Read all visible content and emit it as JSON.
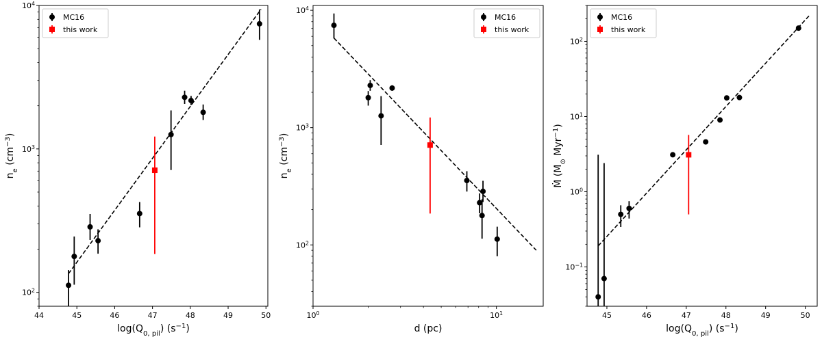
{
  "chart_data": [
    {
      "type": "scatter",
      "xscale": "linear",
      "yscale": "log",
      "xlim": [
        44,
        50.05
      ],
      "ylim": [
        80,
        10000
      ],
      "xlabel_parts": [
        "log(Q",
        "0, pil",
        ") (s",
        "−1",
        ")"
      ],
      "ylabel_parts": [
        "n",
        "e",
        " (cm",
        "−3",
        ")"
      ],
      "xticks": [
        44,
        45,
        46,
        47,
        48,
        49,
        50
      ],
      "xtick_labels": [
        "44",
        "45",
        "46",
        "47",
        "48",
        "49",
        "50"
      ],
      "yticks": [
        100,
        1000,
        10000
      ],
      "ytick_labels": [
        [
          "10",
          "2"
        ],
        [
          "10",
          "3"
        ],
        [
          "10",
          "4"
        ]
      ],
      "legend": {
        "position": "top-left",
        "entries": [
          "MC16",
          "this work"
        ]
      },
      "series": [
        {
          "name": "MC16",
          "color": "#000000",
          "marker": "circle",
          "points": [
            {
              "x": 44.78,
              "y": 112,
              "lo": 80,
              "hi": 143
            },
            {
              "x": 44.93,
              "y": 178,
              "lo": 113,
              "hi": 245
            },
            {
              "x": 45.35,
              "y": 286,
              "lo": 232,
              "hi": 352
            },
            {
              "x": 45.56,
              "y": 229,
              "lo": 186,
              "hi": 275
            },
            {
              "x": 46.66,
              "y": 354,
              "lo": 284,
              "hi": 426
            },
            {
              "x": 47.49,
              "y": 1260,
              "lo": 712,
              "hi": 1855
            },
            {
              "x": 47.85,
              "y": 2290,
              "lo": 2060,
              "hi": 2545
            },
            {
              "x": 48.02,
              "y": 2174,
              "lo": 2020,
              "hi": 2340
            },
            {
              "x": 48.34,
              "y": 1800,
              "lo": 1590,
              "hi": 2040
            },
            {
              "x": 49.83,
              "y": 7450,
              "lo": 5760,
              "hi": 9390
            }
          ]
        },
        {
          "name": "this work",
          "color": "#ff0000",
          "marker": "square",
          "points": [
            {
              "x": 47.06,
              "y": 710,
              "lo": 185,
              "hi": 1220
            }
          ]
        }
      ],
      "fit_line": {
        "x": [
          44.78,
          49.87
        ],
        "y": [
          135,
          9400
        ]
      }
    },
    {
      "type": "scatter",
      "xscale": "log",
      "yscale": "log",
      "xlim": [
        1,
        18
      ],
      "ylim": [
        30,
        11000
      ],
      "xlabel_parts": [
        "d (pc)"
      ],
      "ylabel_parts": [
        "n",
        "e",
        " (cm",
        "−3",
        ")"
      ],
      "xticks": [
        1,
        10
      ],
      "xtick_labels": [
        [
          "10",
          "0"
        ],
        [
          "10",
          "1"
        ]
      ],
      "yticks": [
        100,
        1000,
        10000
      ],
      "ytick_labels": [
        [
          "10",
          "2"
        ],
        [
          "10",
          "3"
        ],
        [
          "10",
          "4"
        ]
      ],
      "legend": {
        "position": "top-right",
        "entries": [
          "MC16",
          "this work"
        ]
      },
      "series": [
        {
          "name": "MC16",
          "color": "#000000",
          "marker": "circle",
          "points": [
            {
              "x": 1.3,
              "y": 7450,
              "lo": 5770,
              "hi": 9400
            },
            {
              "x": 2.0,
              "y": 1800,
              "lo": 1540,
              "hi": 2050
            },
            {
              "x": 2.05,
              "y": 2290,
              "lo": 2060,
              "hi": 2540
            },
            {
              "x": 2.7,
              "y": 2174,
              "lo": 2060,
              "hi": 2300
            },
            {
              "x": 2.35,
              "y": 1260,
              "lo": 712,
              "hi": 1855
            },
            {
              "x": 6.9,
              "y": 354,
              "lo": 285,
              "hi": 425
            },
            {
              "x": 8.1,
              "y": 229,
              "lo": 186,
              "hi": 275
            },
            {
              "x": 8.45,
              "y": 286,
              "lo": 232,
              "hi": 352
            },
            {
              "x": 8.35,
              "y": 178,
              "lo": 113,
              "hi": 245
            },
            {
              "x": 10.1,
              "y": 112,
              "lo": 80,
              "hi": 143
            }
          ]
        },
        {
          "name": "this work",
          "color": "#ff0000",
          "marker": "square",
          "points": [
            {
              "x": 4.35,
              "y": 710,
              "lo": 185,
              "hi": 1220
            }
          ]
        }
      ],
      "fit_line": {
        "x": [
          1.3,
          16.5
        ],
        "y": [
          5800,
          90
        ]
      }
    },
    {
      "type": "scatter",
      "xscale": "linear",
      "yscale": "log",
      "xlim": [
        44.5,
        50.3
      ],
      "ylim": [
        0.03,
        300
      ],
      "xlabel_parts": [
        "log(Q",
        "0, pil",
        ") (s",
        "−1",
        ")"
      ],
      "ylabel_parts": [
        "Ṁ (M",
        "⊙",
        " Myr",
        "−1",
        ")"
      ],
      "xticks": [
        45,
        46,
        47,
        48,
        49,
        50
      ],
      "xtick_labels": [
        "45",
        "46",
        "47",
        "48",
        "49",
        "50"
      ],
      "yticks": [
        0.1,
        1,
        10,
        100
      ],
      "ytick_labels": [
        [
          "10",
          "−1"
        ],
        [
          "10",
          "0"
        ],
        [
          "10",
          "1"
        ],
        [
          "10",
          "2"
        ]
      ],
      "legend": {
        "position": "top-left",
        "entries": [
          "MC16",
          "this work"
        ]
      },
      "series": [
        {
          "name": "MC16",
          "color": "#000000",
          "marker": "circle",
          "points": [
            {
              "x": 44.78,
              "y": 0.04,
              "lo": 0.03,
              "hi": 3.1
            },
            {
              "x": 44.93,
              "y": 0.07,
              "lo": 0.03,
              "hi": 2.4
            },
            {
              "x": 45.35,
              "y": 0.5,
              "lo": 0.34,
              "hi": 0.66
            },
            {
              "x": 45.56,
              "y": 0.6,
              "lo": 0.44,
              "hi": 0.75
            },
            {
              "x": 46.66,
              "y": 3.1,
              "lo": 2.9,
              "hi": 3.3
            },
            {
              "x": 47.49,
              "y": 4.6,
              "lo": 4.3,
              "hi": 4.9
            },
            {
              "x": 47.85,
              "y": 9.0,
              "lo": 8.4,
              "hi": 9.6
            },
            {
              "x": 48.02,
              "y": 17.7,
              "lo": 16.8,
              "hi": 18.6
            },
            {
              "x": 48.34,
              "y": 17.9,
              "lo": 17.0,
              "hi": 18.8
            },
            {
              "x": 49.83,
              "y": 150,
              "lo": 143,
              "hi": 158
            }
          ]
        },
        {
          "name": "this work",
          "color": "#ff0000",
          "marker": "square",
          "points": [
            {
              "x": 47.06,
              "y": 3.1,
              "lo": 0.5,
              "hi": 5.7
            }
          ]
        }
      ],
      "fit_line": {
        "x": [
          44.78,
          50.1
        ],
        "y": [
          0.19,
          220
        ]
      }
    }
  ]
}
